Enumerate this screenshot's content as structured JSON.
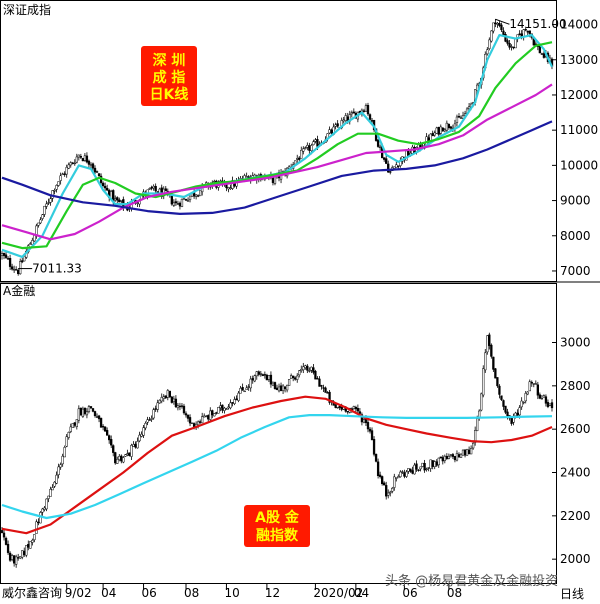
{
  "top_panel": {
    "title": "深证成指",
    "badge": [
      "深 圳",
      "成 指",
      "日K线"
    ],
    "high_label": "14151.00",
    "low_label": "7011.33",
    "y_ticks": [
      7000,
      8000,
      9000,
      10000,
      11000,
      12000,
      13000,
      14000
    ]
  },
  "bottom_panel": {
    "title": "A金融",
    "badge": [
      "A股 金",
      "融指数"
    ],
    "y_ticks": [
      2000,
      2200,
      2400,
      2600,
      2800,
      3000
    ]
  },
  "footer": {
    "source": "威尔鑫咨询",
    "watermark": "头条 @杨易君黄金及金融投资",
    "period": "日线",
    "x_labels": [
      "9/02",
      "04",
      "06",
      "08",
      "10",
      "12",
      "2020/02",
      "04",
      "06",
      "08"
    ]
  },
  "colors": {
    "candle": "#000000",
    "badge_bg": "#ff1a00",
    "badge_text": "#ffff00",
    "ma_cyan": "#33ccdd",
    "ma_green": "#22cc22",
    "ma_magenta": "#cc22cc",
    "ma_blue": "#1a1aa0",
    "ma_red": "#dd1111",
    "ma_lightcyan": "#33d5ee"
  },
  "chart_data": [
    {
      "type": "candlestick",
      "title": "深证成指",
      "ylim": [
        6800,
        14300
      ],
      "x_ticks": [
        "9/02",
        "04",
        "06",
        "08",
        "10",
        "12",
        "2020/02",
        "04",
        "06",
        "08"
      ],
      "close_path": [
        [
          0,
          7450
        ],
        [
          4,
          7200
        ],
        [
          8,
          7011
        ],
        [
          14,
          7800
        ],
        [
          20,
          8600
        ],
        [
          26,
          9400
        ],
        [
          32,
          9900
        ],
        [
          38,
          10300
        ],
        [
          44,
          10100
        ],
        [
          50,
          9400
        ],
        [
          56,
          9000
        ],
        [
          62,
          8800
        ],
        [
          68,
          9100
        ],
        [
          74,
          9300
        ],
        [
          80,
          9200
        ],
        [
          86,
          8900
        ],
        [
          92,
          9100
        ],
        [
          98,
          9300
        ],
        [
          104,
          9500
        ],
        [
          110,
          9400
        ],
        [
          116,
          9500
        ],
        [
          122,
          9700
        ],
        [
          128,
          9700
        ],
        [
          134,
          9600
        ],
        [
          140,
          9800
        ],
        [
          146,
          10200
        ],
        [
          152,
          10500
        ],
        [
          158,
          10700
        ],
        [
          164,
          11000
        ],
        [
          170,
          11300
        ],
        [
          176,
          11500
        ],
        [
          180,
          11700
        ],
        [
          184,
          11000
        ],
        [
          188,
          10300
        ],
        [
          192,
          9800
        ],
        [
          196,
          10100
        ],
        [
          200,
          10300
        ],
        [
          206,
          10500
        ],
        [
          212,
          10800
        ],
        [
          218,
          11100
        ],
        [
          224,
          11200
        ],
        [
          230,
          11500
        ],
        [
          236,
          12300
        ],
        [
          240,
          13400
        ],
        [
          244,
          14151
        ],
        [
          248,
          13700
        ],
        [
          252,
          13300
        ],
        [
          256,
          13700
        ],
        [
          260,
          13900
        ],
        [
          264,
          13400
        ],
        [
          268,
          13100
        ],
        [
          272,
          12900
        ]
      ],
      "series": [
        {
          "name": "",
          "color": "#33ccdd",
          "points": [
            [
              0,
              7600
            ],
            [
              10,
              7400
            ],
            [
              20,
              8000
            ],
            [
              30,
              9200
            ],
            [
              38,
              10000
            ],
            [
              44,
              9900
            ],
            [
              50,
              9300
            ],
            [
              56,
              8900
            ],
            [
              62,
              8900
            ],
            [
              70,
              9200
            ],
            [
              80,
              9200
            ],
            [
              90,
              9100
            ],
            [
              100,
              9400
            ],
            [
              110,
              9500
            ],
            [
              120,
              9600
            ],
            [
              130,
              9700
            ],
            [
              140,
              9800
            ],
            [
              150,
              10200
            ],
            [
              160,
              10700
            ],
            [
              170,
              11200
            ],
            [
              178,
              11500
            ],
            [
              184,
              11100
            ],
            [
              190,
              10300
            ],
            [
              196,
              10100
            ],
            [
              206,
              10400
            ],
            [
              216,
              10800
            ],
            [
              226,
              11100
            ],
            [
              234,
              11800
            ],
            [
              240,
              13000
            ],
            [
              246,
              13700
            ],
            [
              254,
              13600
            ],
            [
              262,
              13700
            ],
            [
              268,
              13300
            ],
            [
              272,
              12800
            ]
          ]
        },
        {
          "name": "",
          "color": "#22cc22",
          "points": [
            [
              0,
              7800
            ],
            [
              10,
              7650
            ],
            [
              22,
              7700
            ],
            [
              32,
              8700
            ],
            [
              40,
              9450
            ],
            [
              48,
              9650
            ],
            [
              56,
              9500
            ],
            [
              66,
              9200
            ],
            [
              76,
              9100
            ],
            [
              86,
              9250
            ],
            [
              96,
              9400
            ],
            [
              106,
              9500
            ],
            [
              116,
              9550
            ],
            [
              126,
              9650
            ],
            [
              136,
              9750
            ],
            [
              146,
              9850
            ],
            [
              156,
              10200
            ],
            [
              166,
              10600
            ],
            [
              176,
              10900
            ],
            [
              186,
              10900
            ],
            [
              196,
              10700
            ],
            [
              206,
              10600
            ],
            [
              216,
              10750
            ],
            [
              226,
              10950
            ],
            [
              236,
              11400
            ],
            [
              244,
              12200
            ],
            [
              254,
              12900
            ],
            [
              264,
              13400
            ],
            [
              272,
              13500
            ]
          ]
        },
        {
          "name": "",
          "color": "#cc22cc",
          "points": [
            [
              0,
              8300
            ],
            [
              12,
              8100
            ],
            [
              24,
              7900
            ],
            [
              36,
              8050
            ],
            [
              48,
              8400
            ],
            [
              60,
              8800
            ],
            [
              72,
              9100
            ],
            [
              84,
              9250
            ],
            [
              96,
              9350
            ],
            [
              108,
              9450
            ],
            [
              120,
              9550
            ],
            [
              132,
              9650
            ],
            [
              144,
              9800
            ],
            [
              156,
              9950
            ],
            [
              168,
              10150
            ],
            [
              180,
              10350
            ],
            [
              192,
              10400
            ],
            [
              204,
              10450
            ],
            [
              216,
              10600
            ],
            [
              228,
              10850
            ],
            [
              240,
              11300
            ],
            [
              252,
              11650
            ],
            [
              264,
              12000
            ],
            [
              272,
              12300
            ]
          ]
        },
        {
          "name": "",
          "color": "#1a1aa0",
          "points": [
            [
              0,
              9650
            ],
            [
              10,
              9450
            ],
            [
              24,
              9150
            ],
            [
              40,
              8950
            ],
            [
              56,
              8850
            ],
            [
              72,
              8700
            ],
            [
              88,
              8620
            ],
            [
              104,
              8650
            ],
            [
              120,
              8800
            ],
            [
              136,
              9100
            ],
            [
              152,
              9400
            ],
            [
              168,
              9700
            ],
            [
              184,
              9850
            ],
            [
              200,
              9900
            ],
            [
              214,
              10000
            ],
            [
              228,
              10200
            ],
            [
              240,
              10450
            ],
            [
              252,
              10750
            ],
            [
              262,
              11000
            ],
            [
              272,
              11250
            ]
          ]
        }
      ],
      "annotations": [
        {
          "text": "14151.00",
          "x": 244,
          "y": 14151
        },
        {
          "text": "7011.33",
          "x": 8,
          "y": 7011
        }
      ]
    },
    {
      "type": "candlestick",
      "title": "A金融",
      "ylim": [
        1950,
        3150
      ],
      "x_ticks": [
        "9/02",
        "04",
        "06",
        "08",
        "10",
        "12",
        "2020/02",
        "04",
        "06",
        "08"
      ],
      "close_path": [
        [
          0,
          2130
        ],
        [
          4,
          2000
        ],
        [
          8,
          1990
        ],
        [
          14,
          2080
        ],
        [
          20,
          2230
        ],
        [
          26,
          2350
        ],
        [
          32,
          2550
        ],
        [
          38,
          2680
        ],
        [
          44,
          2700
        ],
        [
          50,
          2600
        ],
        [
          56,
          2460
        ],
        [
          62,
          2480
        ],
        [
          68,
          2560
        ],
        [
          76,
          2700
        ],
        [
          82,
          2760
        ],
        [
          88,
          2700
        ],
        [
          94,
          2620
        ],
        [
          100,
          2650
        ],
        [
          110,
          2700
        ],
        [
          120,
          2790
        ],
        [
          126,
          2850
        ],
        [
          132,
          2830
        ],
        [
          138,
          2780
        ],
        [
          146,
          2860
        ],
        [
          152,
          2880
        ],
        [
          158,
          2800
        ],
        [
          164,
          2700
        ],
        [
          170,
          2700
        ],
        [
          176,
          2680
        ],
        [
          182,
          2600
        ],
        [
          186,
          2400
        ],
        [
          190,
          2300
        ],
        [
          196,
          2390
        ],
        [
          206,
          2420
        ],
        [
          216,
          2450
        ],
        [
          226,
          2480
        ],
        [
          232,
          2500
        ],
        [
          236,
          2700
        ],
        [
          240,
          3020
        ],
        [
          244,
          2840
        ],
        [
          248,
          2700
        ],
        [
          252,
          2630
        ],
        [
          256,
          2700
        ],
        [
          262,
          2830
        ],
        [
          266,
          2760
        ],
        [
          270,
          2720
        ],
        [
          272,
          2700
        ]
      ],
      "series": [
        {
          "name": "",
          "color": "#dd1111",
          "points": [
            [
              0,
              2140
            ],
            [
              12,
              2120
            ],
            [
              24,
              2160
            ],
            [
              36,
              2240
            ],
            [
              48,
              2320
            ],
            [
              60,
              2400
            ],
            [
              72,
              2490
            ],
            [
              84,
              2570
            ],
            [
              96,
              2610
            ],
            [
              110,
              2660
            ],
            [
              124,
              2700
            ],
            [
              138,
              2730
            ],
            [
              150,
              2750
            ],
            [
              160,
              2740
            ],
            [
              170,
              2700
            ],
            [
              180,
              2650
            ],
            [
              190,
              2620
            ],
            [
              200,
              2600
            ],
            [
              210,
              2580
            ],
            [
              222,
              2560
            ],
            [
              232,
              2545
            ],
            [
              242,
              2540
            ],
            [
              252,
              2550
            ],
            [
              262,
              2570
            ],
            [
              272,
              2610
            ]
          ]
        },
        {
          "name": "",
          "color": "#33d5ee",
          "points": [
            [
              0,
              2250
            ],
            [
              10,
              2220
            ],
            [
              22,
              2190
            ],
            [
              34,
              2210
            ],
            [
              46,
              2250
            ],
            [
              58,
              2300
            ],
            [
              70,
              2350
            ],
            [
              82,
              2400
            ],
            [
              94,
              2450
            ],
            [
              106,
              2500
            ],
            [
              118,
              2560
            ],
            [
              130,
              2610
            ],
            [
              142,
              2655
            ],
            [
              152,
              2665
            ],
            [
              162,
              2665
            ],
            [
              174,
              2660
            ],
            [
              188,
              2655
            ],
            [
              200,
              2652
            ],
            [
              214,
              2652
            ],
            [
              230,
              2652
            ],
            [
              246,
              2655
            ],
            [
              260,
              2658
            ],
            [
              272,
              2660
            ]
          ]
        }
      ]
    }
  ]
}
